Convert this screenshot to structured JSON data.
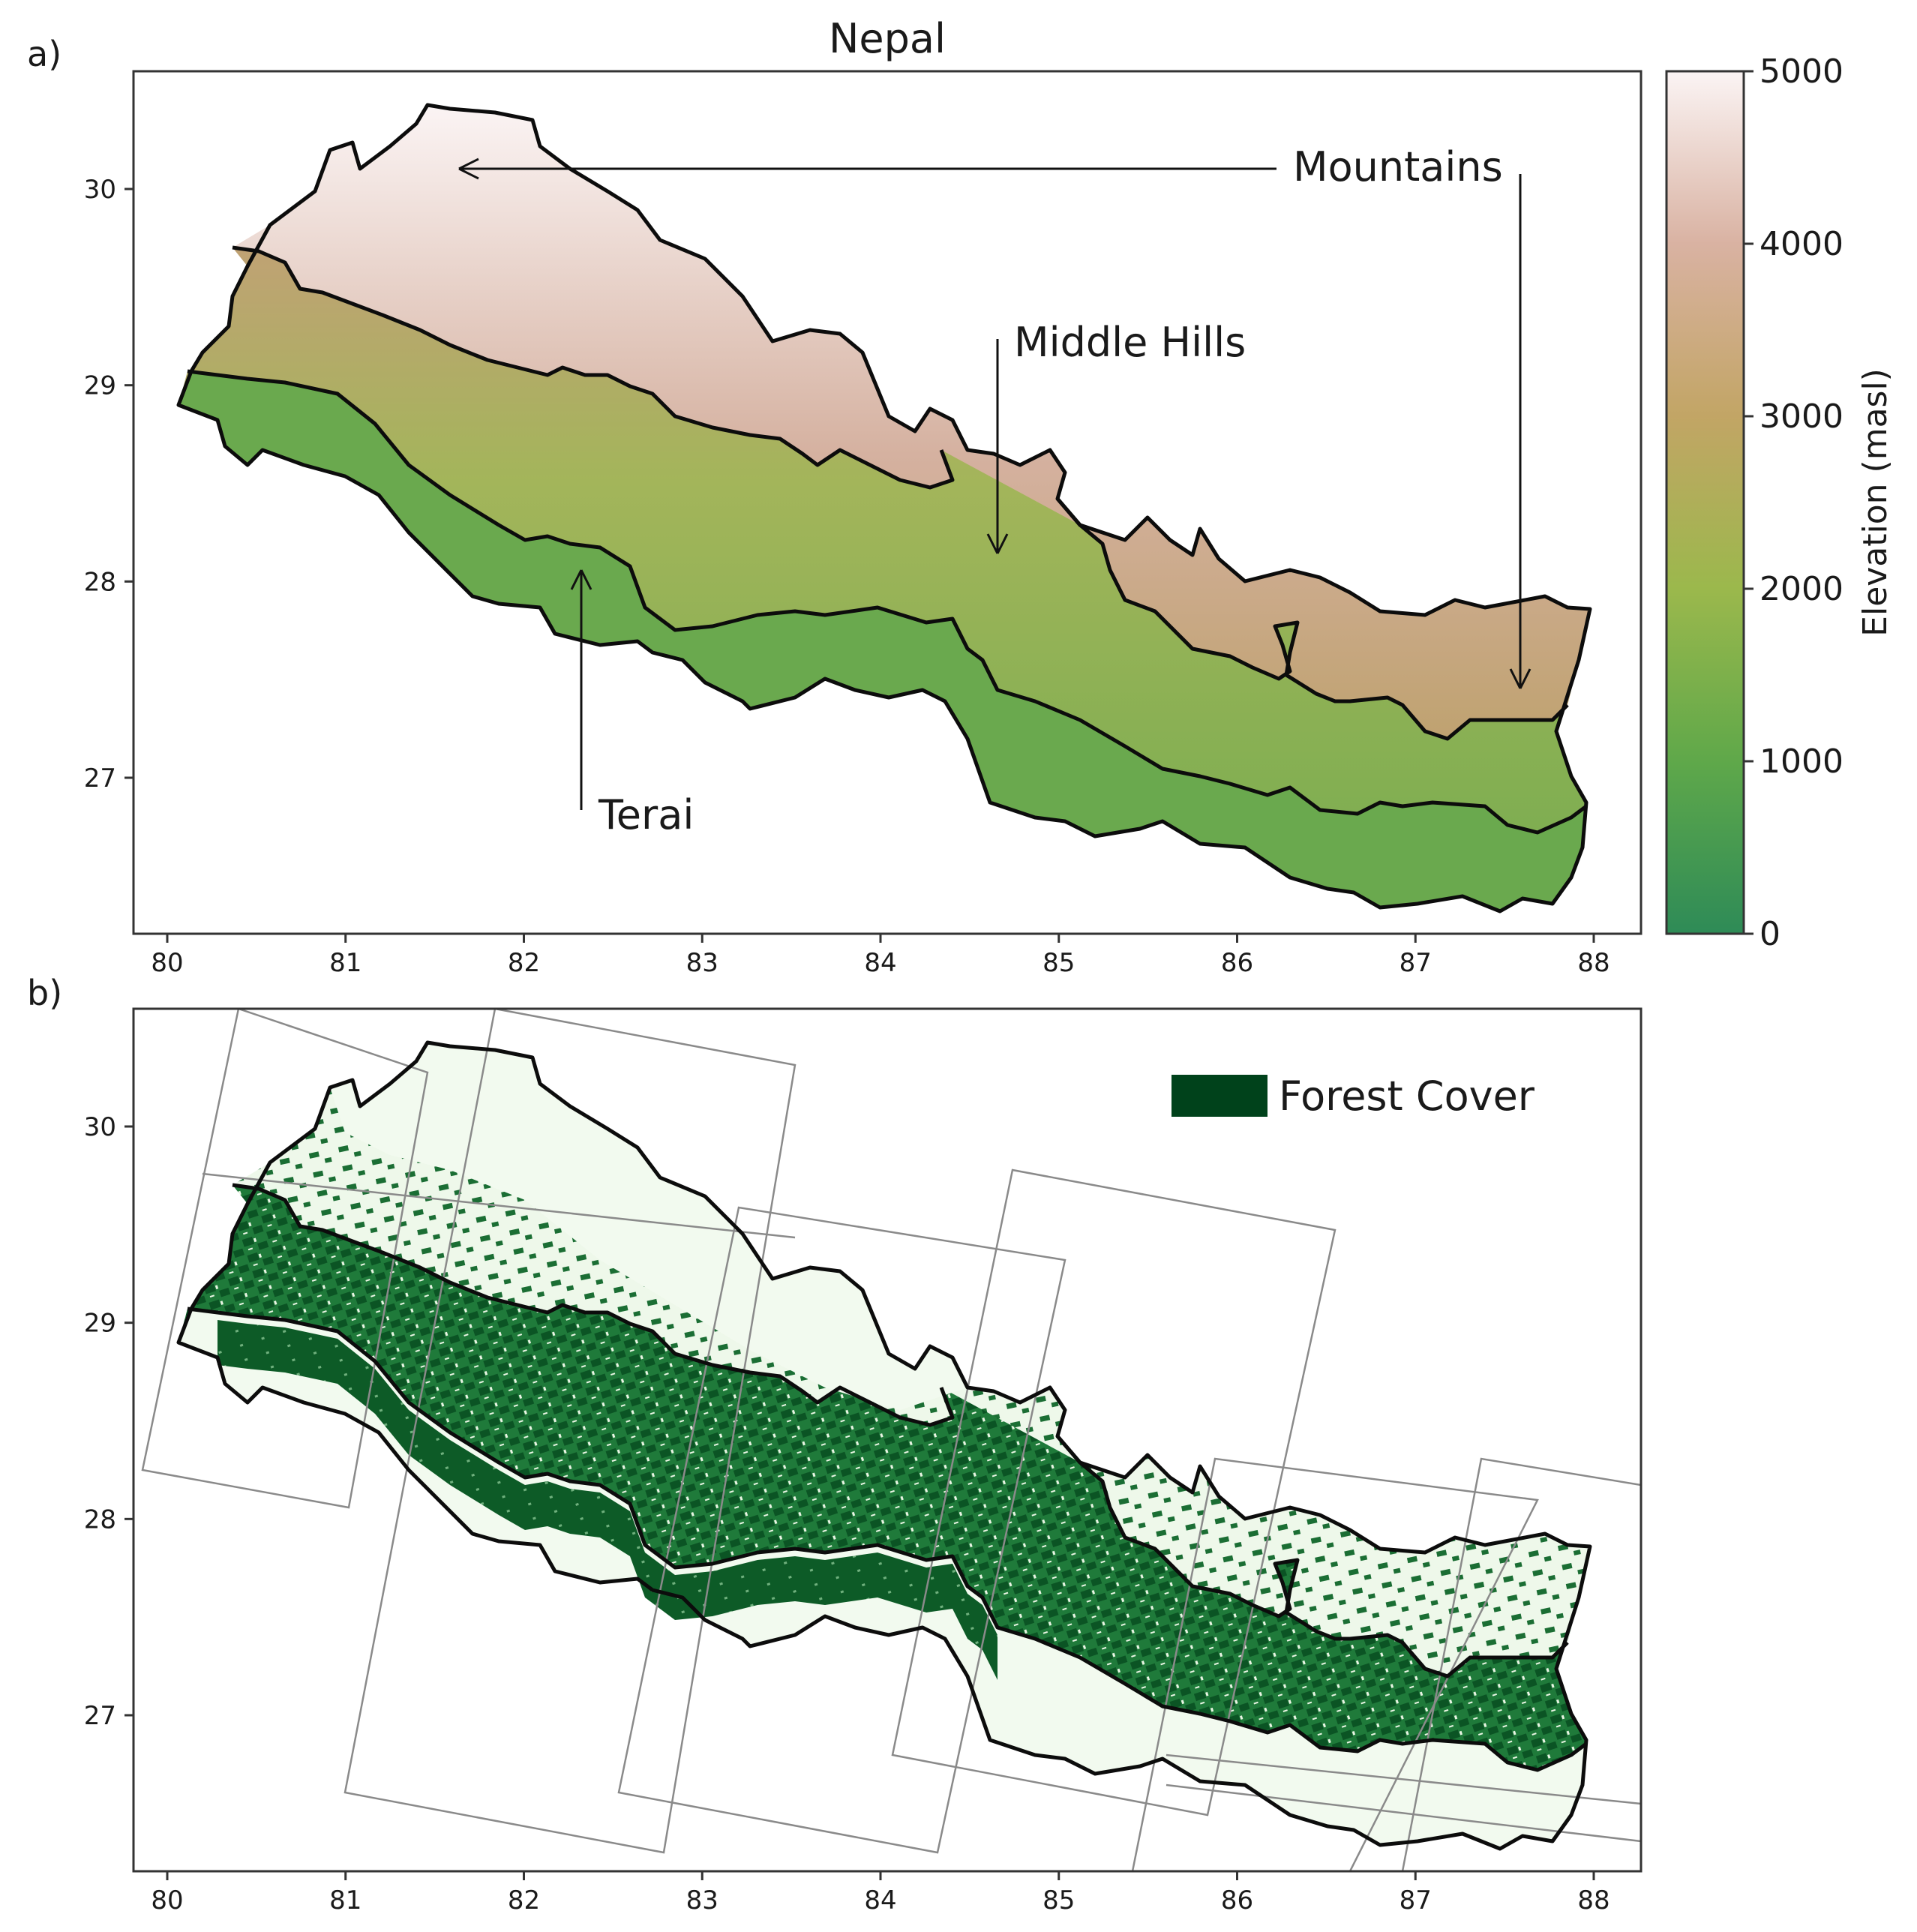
{
  "panel_a": {
    "label": "a)",
    "title": "Nepal",
    "annotations": [
      {
        "key": "mountains",
        "text": "Mountains"
      },
      {
        "key": "middle_hills",
        "text": "Middle Hills"
      },
      {
        "key": "terai",
        "text": "Terai"
      }
    ],
    "colorbar": {
      "label": "Elevation (masl)",
      "ticks": [
        "0",
        "1000",
        "2000",
        "3000",
        "4000",
        "5000"
      ],
      "range": [
        0,
        5000
      ],
      "colors": [
        "#2e8b57",
        "#5fa84a",
        "#9bb84c",
        "#c2a565",
        "#d9b2a2",
        "#fbf4f4"
      ]
    }
  },
  "panel_b": {
    "label": "b)",
    "legend": {
      "text": "Forest Cover",
      "color": "#00421b"
    }
  },
  "axes": {
    "x_ticks": [
      "80",
      "81",
      "82",
      "83",
      "84",
      "85",
      "86",
      "87",
      "88"
    ],
    "y_ticks": [
      "27",
      "28",
      "29",
      "30"
    ],
    "xlim": [
      79.8,
      88.5
    ],
    "ylim": [
      26.2,
      30.6
    ]
  },
  "colors": {
    "boundary": "#0c0c0c",
    "terai": "#6aa94e",
    "hills": "#9cb458",
    "mountains_low": "#c9a386",
    "mountains_high": "#f7eeee",
    "forest": "#0c5a27",
    "nonforest": "#f2faef",
    "scene_outline": "#8a8a8a"
  }
}
